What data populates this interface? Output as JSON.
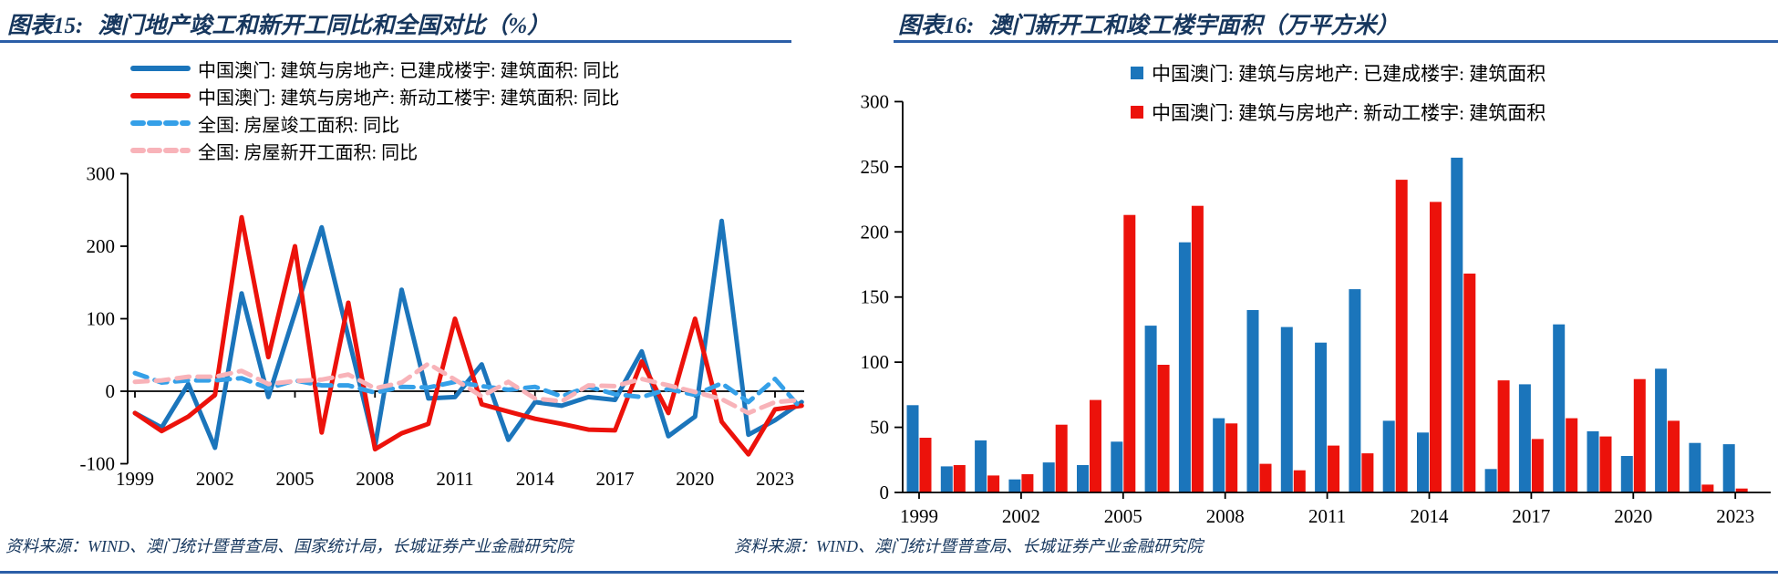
{
  "figure15": {
    "title_prefix": "图表15:",
    "title_text": "澳门地产竣工和新开工同比和全国对比（%）",
    "source": "资料来源：WIND、澳门统计暨普查局、国家统计局，长城证券产业金融研究院"
  },
  "figure16": {
    "title_prefix": "图表16:",
    "title_text": "澳门新开工和竣工楼宇面积（万平方米）",
    "source": "资料来源：WIND、澳门统计暨普查局、长城证券产业金融研究院"
  },
  "colors": {
    "macau_blue": "#1B75BB",
    "macau_red": "#EC120B",
    "national_blue_dashed": "#35A0E8",
    "national_pink_dashed": "#F8B3B9",
    "title_navy": "#17375E",
    "rule_blue": "#2B5EA7",
    "axis_black": "#000000"
  },
  "chart_data": [
    {
      "id": "chart15",
      "type": "line",
      "title": "澳门地产竣工和新开工同比和全国对比（%）",
      "x": [
        1999,
        2000,
        2001,
        2002,
        2003,
        2004,
        2005,
        2006,
        2007,
        2008,
        2009,
        2010,
        2011,
        2012,
        2013,
        2014,
        2015,
        2016,
        2017,
        2018,
        2019,
        2020,
        2021,
        2022,
        2023,
        2024
      ],
      "x_tick_labels": [
        "1999",
        "2002",
        "2005",
        "2008",
        "2011",
        "2014",
        "2017",
        "2020",
        "2023"
      ],
      "x_tick_years": [
        1999,
        2002,
        2005,
        2008,
        2011,
        2014,
        2017,
        2020,
        2023
      ],
      "ylim": [
        -100,
        300
      ],
      "y_ticks": [
        300,
        200,
        100,
        0,
        -100
      ],
      "grid": false,
      "legend_position": "top-left",
      "series": [
        {
          "key": "macau-completed-yoy",
          "name": "中国澳门: 建筑与房地产: 已建成楼宇: 建筑面积: 同比",
          "color": "#1B75BB",
          "dash": false,
          "values": [
            -30,
            -50,
            10,
            -78,
            135,
            -8,
            108,
            226,
            75,
            -76,
            140,
            -10,
            -8,
            37,
            -67,
            -15,
            -20,
            -8,
            -12,
            55,
            -62,
            -35,
            235,
            -60,
            -40,
            -15
          ]
        },
        {
          "key": "macau-newstart-yoy",
          "name": "中国澳门: 建筑与房地产: 新动工楼宇: 建筑面积: 同比",
          "color": "#EC120B",
          "dash": false,
          "values": [
            -30,
            -55,
            -35,
            -5,
            240,
            47,
            200,
            -57,
            122,
            -80,
            -58,
            -45,
            100,
            -18,
            -28,
            -38,
            -45,
            -53,
            -54,
            41,
            -30,
            100,
            -42,
            -87,
            -25,
            -20
          ]
        },
        {
          "key": "national-completed-yoy",
          "name": "全国: 房屋竣工面积: 同比",
          "color": "#35A0E8",
          "dash": true,
          "values": [
            25,
            12,
            15,
            15,
            18,
            4,
            15,
            8,
            8,
            -2,
            6,
            5,
            13,
            7,
            2,
            6,
            -7,
            6,
            -4,
            -8,
            3,
            -5,
            11,
            -15,
            17,
            -25
          ]
        },
        {
          "key": "national-newstart-yoy",
          "name": "全国: 房屋新开工面积: 同比",
          "color": "#F8B3B9",
          "dash": true,
          "values": [
            13,
            15,
            20,
            20,
            28,
            10,
            14,
            16,
            23,
            4,
            12,
            38,
            16,
            -7,
            13,
            -10,
            -14,
            8,
            7,
            17,
            8,
            -1,
            -11,
            -30,
            -15,
            -12
          ]
        }
      ]
    },
    {
      "id": "chart16",
      "type": "bar",
      "title": "澳门新开工和竣工楼宇面积（万平方米）",
      "categories": [
        1999,
        2000,
        2001,
        2002,
        2003,
        2004,
        2005,
        2006,
        2007,
        2008,
        2009,
        2010,
        2011,
        2012,
        2013,
        2014,
        2015,
        2016,
        2017,
        2018,
        2019,
        2020,
        2021,
        2022,
        2023
      ],
      "x_tick_labels": [
        "1999",
        "2002",
        "2005",
        "2008",
        "2011",
        "2014",
        "2017",
        "2020",
        "2023"
      ],
      "x_tick_years": [
        1999,
        2002,
        2005,
        2008,
        2011,
        2014,
        2017,
        2020,
        2023
      ],
      "ylim": [
        0,
        300
      ],
      "y_ticks": [
        300,
        250,
        200,
        150,
        100,
        50,
        0
      ],
      "grid": false,
      "legend_position": "top-center",
      "series": [
        {
          "key": "macau-completed-area",
          "name": "中国澳门: 建筑与房地产: 已建成楼宇: 建筑面积",
          "color": "#1B75BB",
          "values": [
            67,
            20,
            40,
            10,
            23,
            21,
            39,
            128,
            192,
            57,
            140,
            127,
            115,
            156,
            55,
            46,
            257,
            18,
            83,
            129,
            47,
            28,
            95,
            38,
            37
          ]
        },
        {
          "key": "macau-newstart-area",
          "name": "中国澳门: 建筑与房地产: 新动工楼宇: 建筑面积",
          "color": "#EC120B",
          "values": [
            42,
            21,
            13,
            14,
            52,
            71,
            213,
            98,
            220,
            53,
            22,
            17,
            36,
            30,
            240,
            223,
            168,
            86,
            41,
            57,
            43,
            87,
            55,
            6,
            3
          ]
        }
      ]
    }
  ]
}
